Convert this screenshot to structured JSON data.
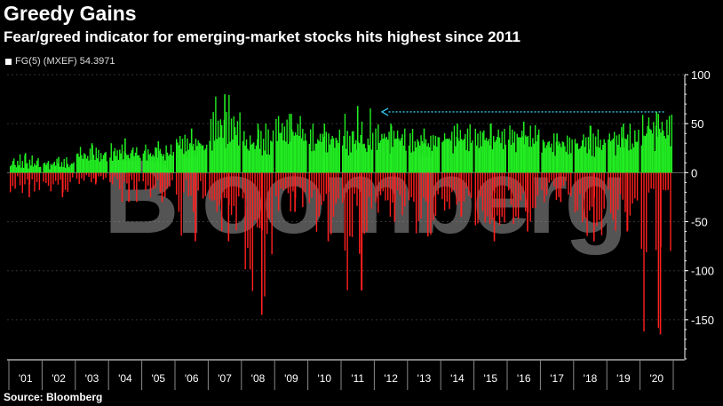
{
  "header": {
    "title": "Greedy Gains",
    "subtitle": "Fear/greed indicator for emerging-market stocks hits highest since 2011"
  },
  "legend": {
    "label": "FG(5) (MXEF) 54.3971"
  },
  "footer": {
    "source": "Source: Bloomberg"
  },
  "watermark": {
    "text": "Bloomberg"
  },
  "colors": {
    "positive": "#22ee22",
    "negative": "#ff2020",
    "annotation": "#33ccee",
    "grid": "#333333",
    "axis": "#ffffff"
  },
  "chart_data": {
    "type": "bar",
    "ylim": [
      -190,
      100
    ],
    "yticks": [
      100,
      50,
      0,
      -50,
      -100,
      -150
    ],
    "grid": true,
    "legend_position": "top-left",
    "x_labels": [
      "'01",
      "'02",
      "'03",
      "'04",
      "'05",
      "'06",
      "'07",
      "'08",
      "'09",
      "'10",
      "'11",
      "'12",
      "'13",
      "'14",
      "'15",
      "'16",
      "'17",
      "'18",
      "'19",
      "'20"
    ],
    "series": [
      {
        "name": "FG(5) (MXEF)",
        "years": [
          {
            "year": "'01",
            "positive": [
              12,
              8,
              18,
              15,
              10,
              6,
              14,
              9,
              20,
              7
            ],
            "negative": [
              -20,
              -15,
              -25,
              -10,
              -18,
              -22,
              -12,
              -8
            ]
          },
          {
            "year": "'02",
            "positive": [
              10,
              14,
              8,
              16,
              12,
              6,
              9,
              11
            ],
            "negative": [
              -15,
              -25,
              -18,
              -20,
              -12,
              -10,
              -22
            ]
          },
          {
            "year": "'03",
            "positive": [
              20,
              25,
              18,
              30,
              22,
              15,
              28,
              19,
              24,
              17
            ],
            "negative": [
              -8,
              -12,
              -6,
              -10,
              -5
            ]
          },
          {
            "year": "'04",
            "positive": [
              25,
              30,
              20,
              22,
              35,
              18,
              28,
              15,
              26
            ],
            "negative": [
              -10,
              -15,
              -8,
              -12,
              -20,
              -30
            ]
          },
          {
            "year": "'05",
            "positive": [
              22,
              28,
              30,
              18,
              24,
              32,
              20,
              26,
              19
            ],
            "negative": [
              -20,
              -30,
              -15,
              -25,
              -18,
              -22
            ]
          },
          {
            "year": "'06",
            "positive": [
              35,
              42,
              30,
              45,
              28,
              38,
              25,
              40,
              33
            ],
            "negative": [
              -25,
              -40,
              -70,
              -30,
              -20,
              -35
            ]
          },
          {
            "year": "'07",
            "positive": [
              48,
              55,
              40,
              62,
              50,
              80,
              45,
              58,
              42,
              65,
              52
            ],
            "negative": [
              -30,
              -45,
              -70,
              -55,
              -35,
              -60
            ]
          },
          {
            "year": "'08",
            "positive": [
              38,
              50,
              30,
              45,
              25,
              35
            ],
            "negative": [
              -60,
              -130,
              -80,
              -100,
              -145,
              -90,
              -110,
              -70
            ]
          },
          {
            "year": "'09",
            "positive": [
              55,
              48,
              60,
              52,
              45,
              58,
              40,
              50,
              44
            ],
            "negative": [
              -25,
              -40,
              -20,
              -35,
              -30
            ]
          },
          {
            "year": "'10",
            "positive": [
              40,
              45,
              35,
              50,
              38,
              30,
              42,
              36
            ],
            "negative": [
              -40,
              -55,
              -30,
              -70,
              -45,
              -35
            ]
          },
          {
            "year": "'11",
            "positive": [
              35,
              42,
              68,
              30,
              45,
              25,
              38
            ],
            "negative": [
              -50,
              -90,
              -120,
              -70,
              -95,
              -60
            ]
          },
          {
            "year": "'12",
            "positive": [
              45,
              38,
              50,
              42,
              35,
              48,
              40,
              44
            ],
            "negative": [
              -30,
              -45,
              -35,
              -50,
              -40
            ]
          },
          {
            "year": "'13",
            "positive": [
              35,
              42,
              30,
              45,
              38,
              32,
              40
            ],
            "negative": [
              -45,
              -60,
              -40,
              -65,
              -50,
              -55
            ]
          },
          {
            "year": "'14",
            "positive": [
              42,
              35,
              48,
              40,
              38,
              45,
              36,
              50
            ],
            "negative": [
              -35,
              -40,
              -30,
              -45,
              -38
            ]
          },
          {
            "year": "'15",
            "positive": [
              45,
              50,
              40,
              38,
              44,
              35
            ],
            "negative": [
              -55,
              -65,
              -50,
              -70,
              -60,
              -45
            ]
          },
          {
            "year": "'16",
            "positive": [
              40,
              52,
              38,
              45,
              48,
              42,
              36
            ],
            "negative": [
              -40,
              -55,
              -60,
              -45,
              -50
            ]
          },
          {
            "year": "'17",
            "positive": [
              30,
              35,
              40,
              28,
              32,
              38,
              34,
              36
            ],
            "negative": [
              -20,
              -30,
              -25,
              -15,
              -22
            ]
          },
          {
            "year": "'18",
            "positive": [
              35,
              48,
              30,
              40,
              25,
              38
            ],
            "negative": [
              -45,
              -60,
              -55,
              -70,
              -50,
              -65
            ]
          },
          {
            "year": "'19",
            "positive": [
              38,
              45,
              40,
              35,
              50,
              42,
              30
            ],
            "negative": [
              -40,
              -55,
              -50,
              -60,
              -45
            ]
          },
          {
            "year": "'20",
            "positive": [
              45,
              60,
              52,
              40,
              48,
              55,
              62,
              58
            ],
            "negative": [
              -80,
              -165,
              -100,
              -40,
              -30,
              -20
            ]
          }
        ]
      }
    ],
    "annotation": {
      "type": "arrow",
      "from_year_fraction": 19.72,
      "to_year_fraction": 11.23,
      "y": 62
    }
  }
}
